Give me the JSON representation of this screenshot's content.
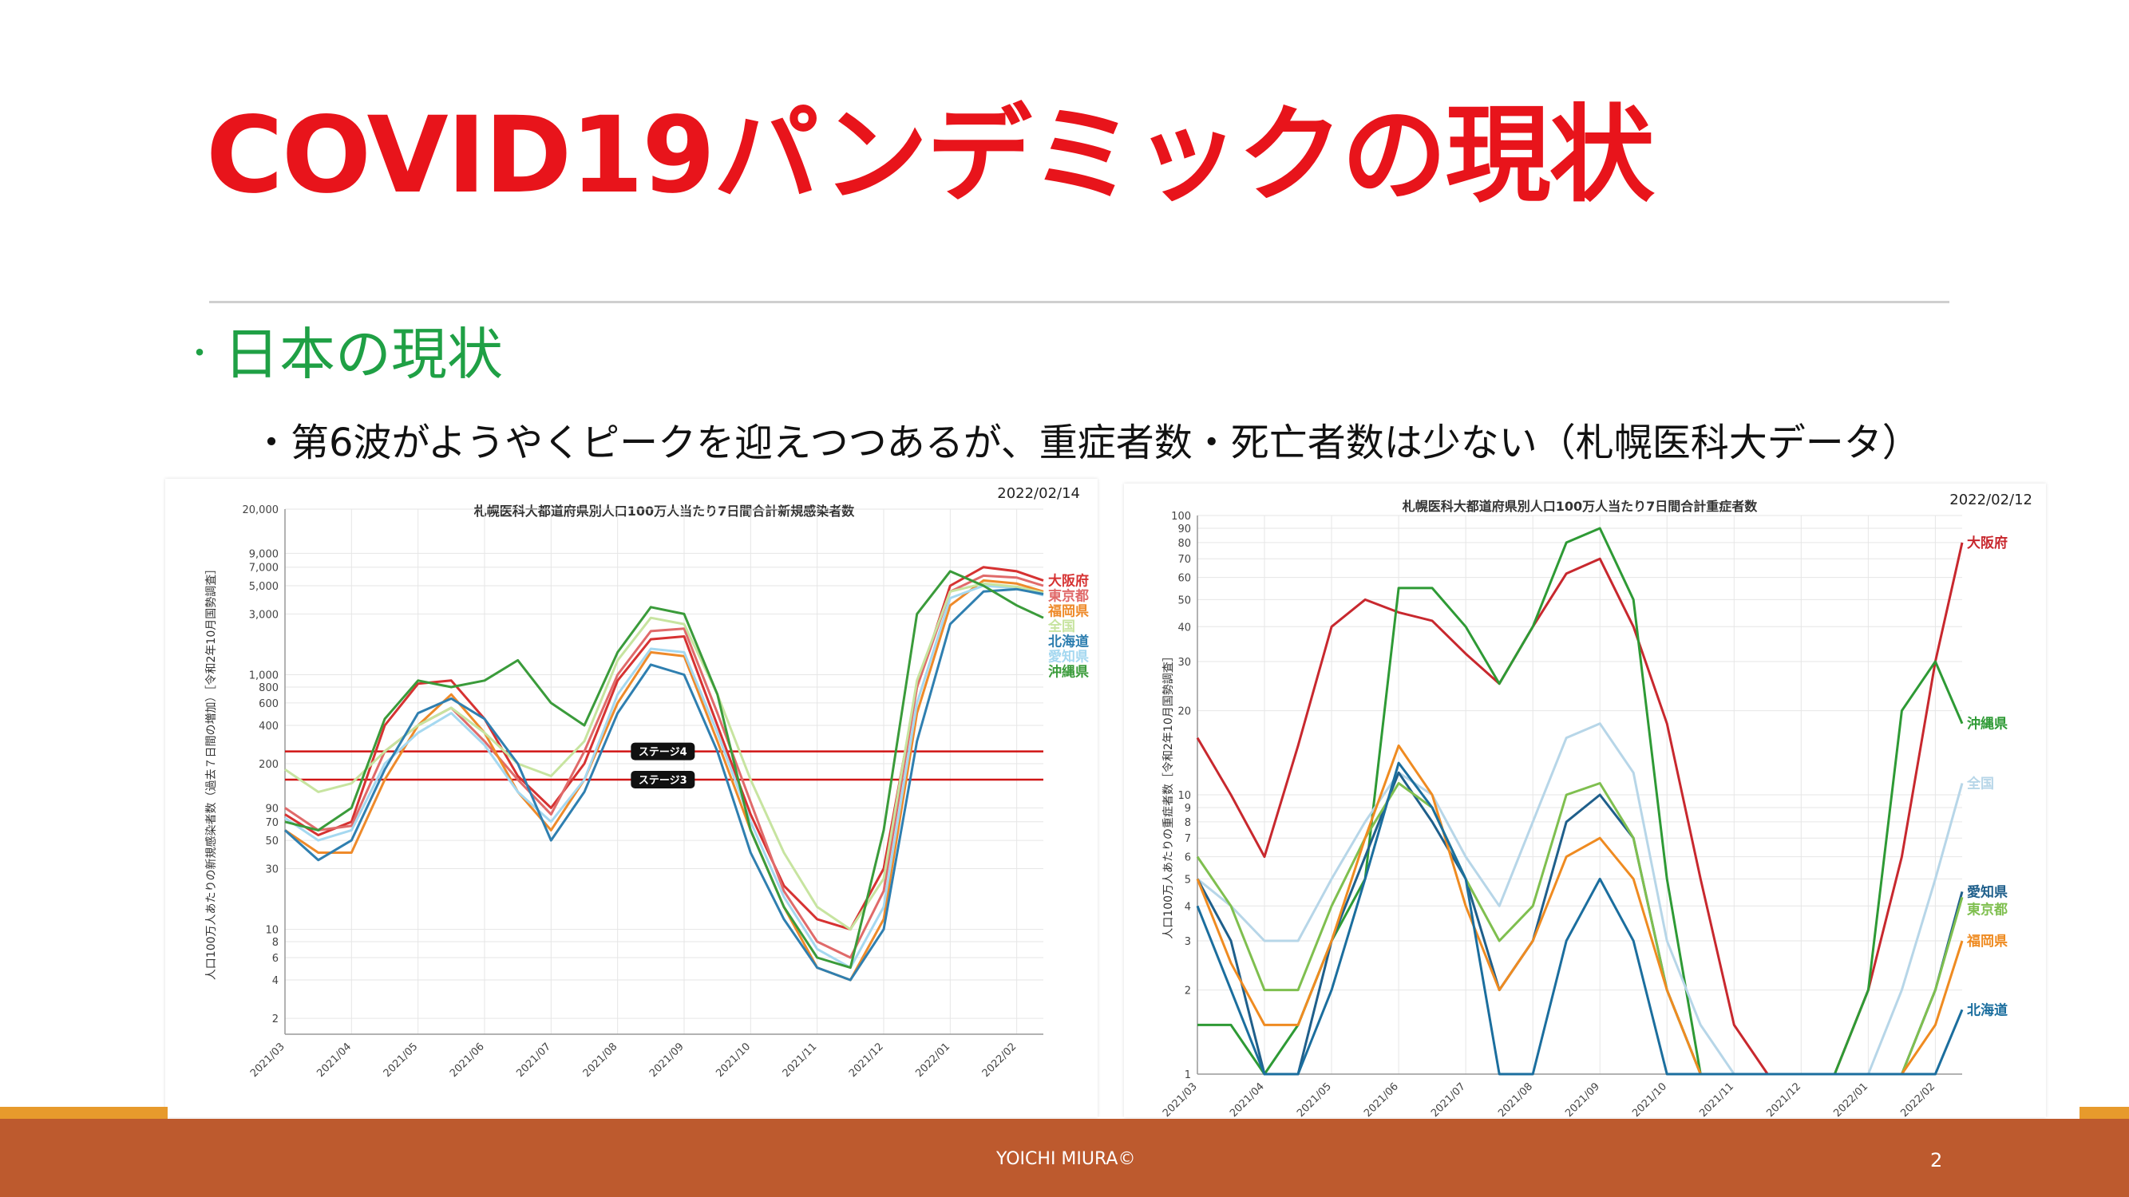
{
  "slide": {
    "title": "COVID19パンデミックの現状",
    "section_bullet": "・",
    "section": "日本の現状",
    "sub_bullet": "・第6波がようやくピークを迎えつつあるが、重症者数・死亡者数は少ない（札幌医科大データ）",
    "author": "YOICHI MIURA©",
    "page": "2"
  },
  "colors": {
    "title": "#e8141b",
    "section": "#1fa045",
    "footer": "#bd5a2e",
    "footer_accent": "#e79a2c",
    "stage_line": "#d01515"
  },
  "chart_data": [
    {
      "type": "line",
      "title": "札幌医科大都道府県別人口100万人当たり7日間合計新規感染者数",
      "date": "2022/02/14",
      "ylabel": "人口100万人あたりの新規感染者数（過去７日間の増加）［令和2年10月国勢調査］",
      "yscale": "log",
      "ylim": [
        1.5,
        20000
      ],
      "ytick_values": [
        2,
        4,
        6,
        8,
        10,
        30,
        50,
        70,
        90,
        200,
        400,
        600,
        800,
        1000,
        3000,
        5000,
        7000,
        9000,
        20000
      ],
      "ytick_labels": [
        "2",
        "4",
        "6",
        "8",
        "10",
        "30",
        "50",
        "70",
        "90",
        "200",
        "400",
        "600",
        "800",
        "1,000",
        "3,000",
        "5,000",
        "7,000",
        "9,000",
        "20,000"
      ],
      "xtick_labels": [
        "2021/03",
        "2021/04",
        "2021/05",
        "2021/06",
        "2021/07",
        "2021/08",
        "2021/09",
        "2021/10",
        "2021/11",
        "2021/12",
        "2022/01",
        "2022/02"
      ],
      "x": [
        0,
        0.5,
        1,
        1.5,
        2,
        2.5,
        3,
        3.5,
        4,
        4.5,
        5,
        5.5,
        6,
        6.5,
        7,
        7.5,
        8,
        8.5,
        9,
        9.5,
        10,
        10.5,
        11,
        11.4
      ],
      "annotations": [
        {
          "label": "ステージ4",
          "value": 250
        },
        {
          "label": "ステージ3",
          "value": 150
        }
      ],
      "series": [
        {
          "name": "大阪府",
          "color": "#d63232",
          "values": [
            80,
            55,
            70,
            400,
            850,
            900,
            450,
            160,
            90,
            200,
            900,
            1900,
            2000,
            400,
            80,
            22,
            12,
            10,
            30,
            800,
            5000,
            7000,
            6500,
            5500
          ]
        },
        {
          "name": "東京都",
          "color": "#e06a6a",
          "values": [
            90,
            60,
            65,
            250,
            400,
            550,
            300,
            150,
            80,
            250,
            1000,
            2200,
            2300,
            500,
            100,
            20,
            8,
            6,
            20,
            800,
            4500,
            6000,
            5800,
            5000
          ]
        },
        {
          "name": "福岡県",
          "color": "#ee8a2a",
          "values": [
            60,
            40,
            40,
            150,
            400,
            700,
            350,
            120,
            60,
            150,
            600,
            1500,
            1400,
            300,
            60,
            15,
            5,
            4,
            12,
            500,
            3500,
            5500,
            5200,
            4500
          ]
        },
        {
          "name": "愛知県",
          "color": "#a5d8f0",
          "values": [
            75,
            50,
            60,
            200,
            350,
            500,
            280,
            120,
            70,
            150,
            700,
            1600,
            1500,
            350,
            70,
            18,
            7,
            5,
            15,
            600,
            4000,
            5000,
            4800,
            4200
          ]
        },
        {
          "name": "全国",
          "color": "#c7e4a0",
          "values": [
            180,
            120,
            140,
            250,
            400,
            550,
            350,
            200,
            160,
            300,
            1300,
            2800,
            2500,
            700,
            150,
            40,
            15,
            10,
            25,
            900,
            4500,
            5200,
            4900,
            4400
          ]
        },
        {
          "name": "北海道",
          "color": "#2f7fb0",
          "values": [
            60,
            35,
            50,
            180,
            500,
            650,
            450,
            200,
            50,
            120,
            500,
            1200,
            1000,
            250,
            40,
            12,
            5,
            4,
            10,
            300,
            2500,
            4500,
            4700,
            4300
          ]
        },
        {
          "name": "沖縄県",
          "color": "#3a9b3a",
          "values": [
            70,
            60,
            90,
            450,
            900,
            800,
            900,
            1300,
            600,
            400,
            1500,
            3400,
            3000,
            700,
            60,
            15,
            6,
            5,
            60,
            3000,
            6500,
            5000,
            3500,
            2800
          ]
        }
      ]
    },
    {
      "type": "line",
      "title": "札幌医科大都道府県別人口100万人当たり7日間合計重症者数",
      "date": "2022/02/12",
      "ylabel": "人口100万人あたりの重症者数［令和2年10月国勢調査］",
      "yscale": "log",
      "ylim": [
        1,
        100
      ],
      "ytick_values": [
        1,
        2,
        3,
        4,
        5,
        6,
        7,
        8,
        9,
        10,
        20,
        30,
        40,
        50,
        60,
        70,
        80,
        90,
        100
      ],
      "ytick_labels": [
        "1",
        "2",
        "3",
        "4",
        "5",
        "6",
        "7",
        "8",
        "9",
        "10",
        "20",
        "30",
        "40",
        "50",
        "60",
        "70",
        "80",
        "90",
        "100"
      ],
      "xtick_labels": [
        "2021/03",
        "2021/04",
        "2021/05",
        "2021/06",
        "2021/07",
        "2021/08",
        "2021/09",
        "2021/10",
        "2021/11",
        "2021/12",
        "2022/01",
        "2022/02"
      ],
      "x": [
        0,
        0.5,
        1,
        1.5,
        2,
        2.5,
        3,
        3.5,
        4,
        4.5,
        5,
        5.5,
        6,
        6.5,
        7,
        7.5,
        8,
        8.5,
        9,
        9.5,
        10,
        10.5,
        11,
        11.4
      ],
      "series": [
        {
          "name": "大阪府",
          "color": "#c8282e",
          "values": [
            16,
            10,
            6,
            15,
            40,
            50,
            45,
            42,
            32,
            25,
            40,
            62,
            70,
            40,
            18,
            5,
            1.5,
            1,
            1,
            1,
            2,
            6,
            30,
            80
          ]
        },
        {
          "name": "沖縄県",
          "color": "#2e9a35",
          "values": [
            1.5,
            1.5,
            1,
            1.5,
            3,
            5,
            55,
            55,
            40,
            25,
            40,
            80,
            90,
            50,
            5,
            1,
            1,
            1,
            1,
            1,
            2,
            20,
            30,
            18
          ]
        },
        {
          "name": "全国",
          "color": "#b7d6e8",
          "values": [
            5,
            4,
            3,
            3,
            5,
            8,
            12,
            10,
            6,
            4,
            8,
            16,
            18,
            12,
            3,
            1.5,
            1,
            1,
            1,
            1,
            1,
            2,
            5,
            11
          ]
        },
        {
          "name": "愛知県",
          "color": "#1f5f8b",
          "values": [
            5,
            3,
            1,
            1,
            3,
            6,
            12,
            8,
            5,
            2,
            3,
            8,
            10,
            7,
            2,
            1,
            1,
            1,
            1,
            1,
            1,
            1,
            2,
            4.5
          ]
        },
        {
          "name": "東京都",
          "color": "#7fbf4f",
          "values": [
            6,
            4,
            2,
            2,
            4,
            7,
            11,
            9,
            5,
            3,
            4,
            10,
            11,
            7,
            2,
            1,
            1,
            1,
            1,
            1,
            1,
            1,
            2,
            4.3
          ]
        },
        {
          "name": "福岡県",
          "color": "#ef8b21",
          "values": [
            5,
            2.5,
            1.5,
            1.5,
            3,
            7,
            15,
            10,
            4,
            2,
            3,
            6,
            7,
            5,
            2,
            1,
            1,
            1,
            1,
            1,
            1,
            1,
            1.5,
            3
          ]
        },
        {
          "name": "北海道",
          "color": "#1b6e9e",
          "values": [
            4,
            2,
            1,
            1,
            2,
            5,
            13,
            9,
            5,
            1,
            1,
            3,
            5,
            3,
            1,
            1,
            1,
            1,
            1,
            1,
            1,
            1,
            1,
            1.7
          ]
        }
      ]
    }
  ]
}
